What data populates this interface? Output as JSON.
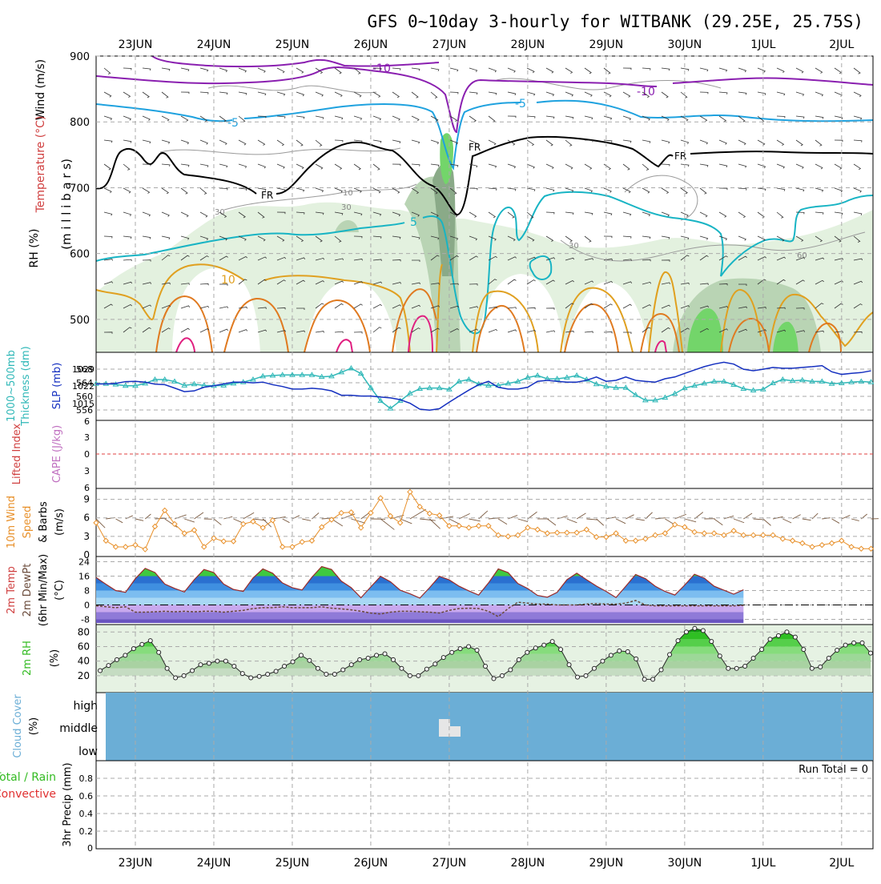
{
  "chart_data": {
    "type": "line",
    "title": "GFS 0~10day 3-hourly for WITBANK (29.25E, 25.75S)",
    "dates": [
      "23JUN",
      "24JUN",
      "25JUN",
      "26JUN",
      "27JUN",
      "28JUN",
      "29JUN",
      "30JUN",
      "1JUL",
      "2JUL"
    ],
    "x_start_day": 22.5,
    "x_step_days": 0.125,
    "colors": {
      "rh_light": "#e3f1df",
      "rh_mid": "#b9d4b4",
      "rh_dark": "#8aaa88",
      "rh_green": "#73d56a",
      "temp_m10": "#8a1fb0",
      "temp_m5": "#1fa2df",
      "temp_fr": "#000000",
      "temp_p5": "#18b4c4",
      "temp_p10": "#e0a020",
      "temp_p15": "#e07a20",
      "temp_p20": "#e02080",
      "slp": "#1530c0",
      "thickness": "#30b8b8",
      "wind10m": "#e8902a",
      "rh2m": "#33bb22",
      "cloud": "#6baed6",
      "cloud_middle": "#e6e6e6"
    },
    "panels": [
      {
        "id": "upper_air",
        "ylabels": [
          "Wind (m/s)",
          "Temperature (°C)",
          "RH (%)",
          "(m i l l i b a r s)"
        ],
        "ylim": [
          450,
          900
        ],
        "yticks": [
          500,
          600,
          700,
          800,
          900
        ],
        "isotherm_labels": [
          "-10",
          "-10",
          "-5",
          "-5",
          "FR",
          "FR",
          "FR",
          "5",
          "10"
        ],
        "rh_labels": [
          "30",
          "30",
          "10",
          "30",
          "60"
        ]
      },
      {
        "id": "slp_thickness",
        "ylabels": [
          "1000~500mb",
          "Thickness (dm)",
          "SLP (mb)"
        ],
        "left_ticks": [
          "568",
          "564",
          "560",
          "556"
        ],
        "right_ticks": [
          "1029",
          "1022",
          "1015"
        ],
        "series": [
          {
            "name": "SLP (mb)",
            "ylim": [
              1009,
              1032
            ],
            "values": [
              1021.6,
              1021.6,
              1021.8,
              1022.5,
              1022.6,
              1022.3,
              1021.5,
              1021.3,
              1020.0,
              1018.6,
              1018.9,
              1020.3,
              1020.9,
              1021.6,
              1022.3,
              1022.3,
              1022.0,
              1022.3,
              1021.3,
              1020.6,
              1019.6,
              1019.6,
              1019.9,
              1019.6,
              1018.9,
              1017.2,
              1017.2,
              1016.9,
              1016.9,
              1016.5,
              1016.2,
              1015.5,
              1014.1,
              1011.8,
              1011.4,
              1012.0,
              1014.5,
              1016.9,
              1019.2,
              1021.3,
              1022.6,
              1020.3,
              1019.6,
              1019.6,
              1020.3,
              1022.6,
              1023.0,
              1022.6,
              1022.3,
              1022.3,
              1023.0,
              1024.3,
              1022.6,
              1023.0,
              1024.3,
              1023.0,
              1022.6,
              1022.3,
              1023.6,
              1024.3,
              1025.7,
              1027.0,
              1028.3,
              1029.3,
              1030.0,
              1029.3,
              1027.3,
              1026.7,
              1027.3,
              1028.0,
              1027.7,
              1027.7,
              1028.0,
              1028.3,
              1028.7,
              1026.3,
              1025.3,
              1025.7,
              1026.0,
              1026.7
            ]
          },
          {
            "name": "1000~500mb Thickness (dm)",
            "ylim": [
              554,
              572
            ],
            "values": [
              563.9,
              563.9,
              563.7,
              563.3,
              563.3,
              564.0,
              565.2,
              565.2,
              564.6,
              563.4,
              563.8,
              563.4,
              563.3,
              563.4,
              564.0,
              564.4,
              565.2,
              566.2,
              566.4,
              566.6,
              566.6,
              566.6,
              566.6,
              566.0,
              566.2,
              567.4,
              568.6,
              567.0,
              562.7,
              558.7,
              556.4,
              558.7,
              561.0,
              562.4,
              562.6,
              562.6,
              562.2,
              564.6,
              565.2,
              563.8,
              563.4,
              563.4,
              564.0,
              564.6,
              565.8,
              566.4,
              565.4,
              565.4,
              565.8,
              566.4,
              565.2,
              563.8,
              563.1,
              562.7,
              562.7,
              560.5,
              558.9,
              558.9,
              559.7,
              560.9,
              562.6,
              563.3,
              564.0,
              564.6,
              564.6,
              563.6,
              562.4,
              561.9,
              562.2,
              564.1,
              565.2,
              564.8,
              565.0,
              564.6,
              564.6,
              563.9,
              564.1,
              564.4,
              564.6,
              564.4
            ]
          }
        ]
      },
      {
        "id": "cape_li",
        "ylabels": [
          "Lifted Index",
          "CAPE (J/kg)"
        ],
        "ylim": [
          6,
          -6
        ],
        "yticks": [
          "6",
          "3",
          "0",
          "3",
          "6"
        ]
      },
      {
        "id": "wind10m",
        "ylabels": [
          "10m Wind",
          "Speed",
          "& Barbs",
          "(m/s)"
        ],
        "ylim": [
          0,
          10.5
        ],
        "yticks": [
          0,
          3,
          6,
          9
        ],
        "series": [
          {
            "name": "10m Wind Speed (m/s)",
            "values": [
              5.2,
              2.3,
              1.3,
              1.3,
              1.6,
              0.9,
              4.6,
              7.2,
              5.0,
              3.5,
              4.0,
              1.3,
              2.7,
              2.2,
              2.2,
              5.0,
              5.4,
              4.4,
              5.6,
              1.3,
              1.3,
              2.1,
              2.3,
              4.5,
              5.7,
              6.8,
              6.9,
              4.4,
              6.8,
              9.2,
              6.3,
              5.2,
              10.2,
              7.8,
              6.7,
              6.4,
              4.7,
              4.7,
              4.4,
              4.7,
              4.7,
              3.2,
              3.0,
              3.2,
              4.4,
              4.1,
              3.5,
              3.6,
              3.6,
              3.6,
              4.1,
              2.9,
              2.9,
              3.5,
              2.3,
              2.3,
              2.6,
              3.2,
              3.5,
              4.9,
              4.5,
              3.7,
              3.5,
              3.5,
              3.2,
              3.9,
              3.2,
              3.2,
              3.2,
              3.2,
              2.6,
              2.3,
              1.9,
              1.3,
              1.6,
              1.9,
              2.3,
              1.3,
              1.0,
              1.0
            ]
          }
        ]
      },
      {
        "id": "temp2m",
        "ylabels": [
          "2m Temp",
          "2m DewPt",
          "(6hr Min/Max)",
          "(°C)"
        ],
        "ylim": [
          -10,
          26
        ],
        "yticks": [
          24,
          16,
          8,
          0,
          -8
        ],
        "series": [
          {
            "name": "2m Temp (°C)",
            "values": [
              15.2,
              11.5,
              8.0,
              7.0,
              14.6,
              20.3,
              18.0,
              11.6,
              9.2,
              7.2,
              14.0,
              19.7,
              18.0,
              11.6,
              8.6,
              7.5,
              15.0,
              20.0,
              17.6,
              12.2,
              9.6,
              8.3,
              15.4,
              21.3,
              19.7,
              13.2,
              9.6,
              4.0,
              10.0,
              15.9,
              12.9,
              8.2,
              6.2,
              3.8,
              9.6,
              15.9,
              13.9,
              10.4,
              7.8,
              5.5,
              12.2,
              20.0,
              18.0,
              11.9,
              9.1,
              5.3,
              4.3,
              7.0,
              14.0,
              17.6,
              14.0,
              10.5,
              7.5,
              4.1,
              10.4,
              16.9,
              14.6,
              10.4,
              7.5,
              5.5,
              11.0,
              17.0,
              14.9,
              10.4,
              8.2,
              6.0,
              8.4
            ]
          },
          {
            "name": "2m DewPt (°C)",
            "values": [
              -0.5,
              -1.0,
              -1.5,
              -1.0,
              -4.0,
              -4.0,
              -3.8,
              -3.5,
              -3.8,
              -3.5,
              -3.8,
              -3.5,
              -3.5,
              -4.0,
              -3.5,
              -3.0,
              -2.0,
              -1.5,
              -1.5,
              -1.0,
              -1.5,
              -1.5,
              -1.5,
              -1.0,
              -1.8,
              -2.2,
              -2.7,
              -3.5,
              -4.5,
              -5.0,
              -4.0,
              -3.5,
              -3.5,
              -3.8,
              -4.0,
              -4.5,
              -3.0,
              -2.0,
              -1.8,
              -2.0,
              -3.5,
              -6.5,
              -2.0,
              1.5,
              1.0,
              0.5,
              0.5,
              0.0,
              0.0,
              0.0,
              0.5,
              0.8,
              0.5,
              0.5,
              1.0,
              2.5,
              0.0,
              -0.5,
              -0.5,
              -0.5,
              -0.5,
              -0.5,
              -0.5,
              -0.5,
              -0.5,
              -0.5,
              -0.2
            ]
          }
        ]
      },
      {
        "id": "rh2m",
        "ylabels": [
          "2m RH",
          "(%)"
        ],
        "ylim": [
          0,
          88
        ],
        "yticks": [
          80,
          60,
          40,
          20
        ],
        "series": [
          {
            "name": "2m RH (%)",
            "values": [
              27,
              34,
              42,
              48,
              57,
              63,
              68,
              52,
              30,
              17,
              20,
              27,
              35,
              37,
              40,
              40,
              33,
              23,
              17,
              19,
              22,
              26,
              33,
              39,
              48,
              41,
              30,
              22,
              22,
              28,
              35,
              42,
              44,
              48,
              50,
              42,
              30,
              20,
              20,
              29,
              36,
              45,
              52,
              57,
              60,
              55,
              33,
              16,
              20,
              28,
              42,
              52,
              58,
              62,
              67,
              56,
              35,
              18,
              20,
              30,
              40,
              48,
              54,
              53,
              43,
              15,
              15,
              28,
              49,
              68,
              80,
              85,
              82,
              67,
              47,
              30,
              30,
              33,
              44,
              56,
              70,
              75,
              80,
              73,
              56,
              30,
              32,
              44,
              55,
              62,
              65,
              65,
              51
            ]
          }
        ]
      },
      {
        "id": "cloud",
        "ylabels": [
          "Cloud Cover",
          "(%)"
        ],
        "levels": [
          "high",
          "middle",
          "low"
        ]
      },
      {
        "id": "precip",
        "ylabels": [
          "Total / Rain",
          "Convective",
          "3hr Precip (mm)"
        ],
        "ylim": [
          0,
          1
        ],
        "yticks": [
          "0.8",
          "0.6",
          "0.4",
          "0.2",
          "0"
        ],
        "run_total": "Run Total = 0"
      }
    ]
  }
}
